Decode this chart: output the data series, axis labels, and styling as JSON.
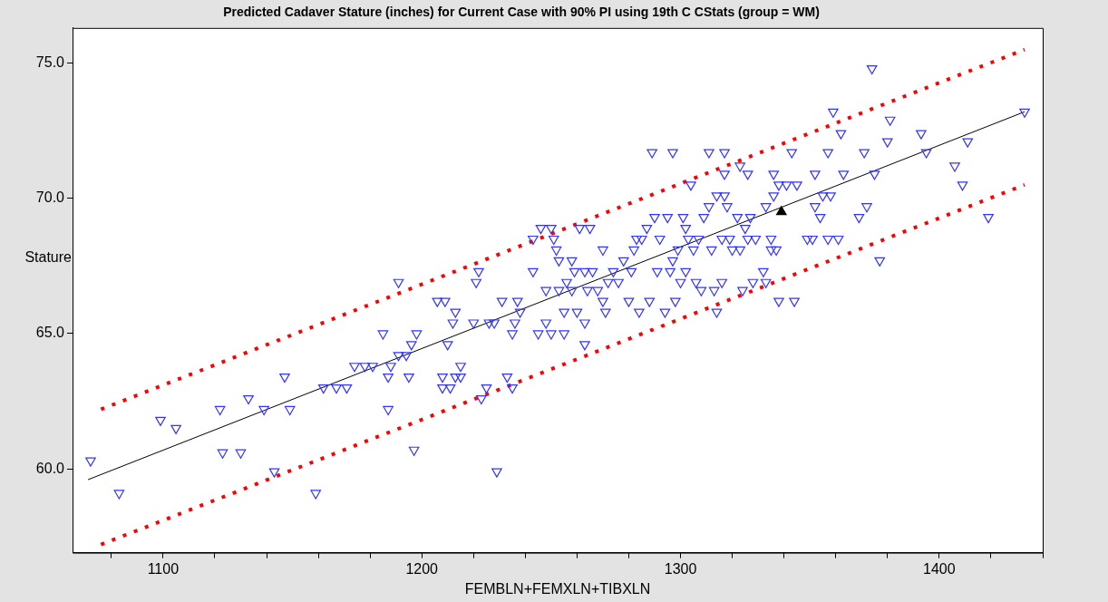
{
  "chart_data": {
    "type": "scatter",
    "title": "Predicted Cadaver Stature (inches) for Current Case with 90% PI using 19th C CStats (group = WM)",
    "xlabel": "FEMBLN+FEMXLN+TIBXLN",
    "ylabel": "Stature",
    "xlim": [
      1065,
      1440
    ],
    "ylim": [
      56.9,
      76.3
    ],
    "xticks": [
      {
        "value": 1080,
        "label": null
      },
      1100,
      {
        "value": 1120,
        "label": null
      },
      {
        "value": 1140,
        "label": null
      },
      {
        "value": 1160,
        "label": null
      },
      {
        "value": 1180,
        "label": null
      },
      1200,
      {
        "value": 1220,
        "label": null
      },
      {
        "value": 1240,
        "label": null
      },
      {
        "value": 1260,
        "label": null
      },
      {
        "value": 1280,
        "label": null
      },
      1300,
      {
        "value": 1320,
        "label": null
      },
      {
        "value": 1340,
        "label": null
      },
      {
        "value": 1360,
        "label": null
      },
      {
        "value": 1380,
        "label": null
      },
      1400,
      {
        "value": 1420,
        "label": null
      },
      {
        "value": 1440,
        "label": null
      }
    ],
    "yticks": [
      {
        "value": 60,
        "label": "60.0"
      },
      {
        "value": 65,
        "label": "65.0"
      },
      {
        "value": 70,
        "label": "70.0"
      },
      {
        "value": 75,
        "label": "75.0"
      }
    ],
    "grid": false,
    "legend": false,
    "series": [
      {
        "color": "#3333ff",
        "marker": "triangle",
        "x": [
          1072,
          1083,
          1099,
          1105,
          1122,
          1123,
          1130,
          1133,
          1139,
          1143,
          1147,
          1149,
          1159,
          1162,
          1167,
          1171,
          1174,
          1178,
          1181,
          1185,
          1187,
          1187,
          1188,
          1191,
          1191,
          1194,
          1195,
          1196,
          1197,
          1198,
          1206,
          1208,
          1208,
          1209,
          1210,
          1211,
          1212,
          1213,
          1213,
          1215,
          1215,
          1220,
          1221,
          1222,
          1223,
          1225,
          1226,
          1228,
          1229,
          1231,
          1233,
          1235,
          1235,
          1236,
          1237,
          1238,
          1243,
          1243,
          1245,
          1246,
          1248,
          1248,
          1250,
          1250,
          1251,
          1252,
          1253,
          1253,
          1255,
          1255,
          1256,
          1258,
          1258,
          1259,
          1260,
          1261,
          1263,
          1263,
          1263,
          1265,
          1264,
          1266,
          1268,
          1270,
          1270,
          1271,
          1272,
          1274,
          1276,
          1278,
          1280,
          1281,
          1282,
          1283,
          1284,
          1285,
          1287,
          1288,
          1289,
          1290,
          1291,
          1292,
          1294,
          1295,
          1296,
          1297,
          1297,
          1298,
          1299,
          1300,
          1301,
          1302,
          1302,
          1303,
          1304,
          1305,
          1306,
          1307,
          1308,
          1309,
          1311,
          1311,
          1312,
          1313,
          1314,
          1314,
          1316,
          1316,
          1317,
          1317,
          1317,
          1318,
          1319,
          1320,
          1322,
          1323,
          1323,
          1324,
          1325,
          1326,
          1326,
          1327,
          1328,
          1329,
          1332,
          1333,
          1333,
          1335,
          1335,
          1336,
          1336,
          1337,
          1338,
          1338,
          1341,
          1343,
          1344,
          1345,
          1349,
          1351,
          1352,
          1352,
          1354,
          1355,
          1357,
          1357,
          1358,
          1359,
          1361,
          1362,
          1363,
          1369,
          1371,
          1372,
          1374,
          1375,
          1377,
          1380,
          1381,
          1393,
          1395,
          1406,
          1409,
          1411,
          1419,
          1433
        ],
        "values": [
          60.3,
          59.1,
          61.8,
          61.5,
          62.2,
          60.6,
          60.6,
          62.6,
          62.2,
          59.9,
          63.4,
          62.2,
          59.1,
          63.0,
          63.0,
          63.0,
          63.8,
          63.8,
          63.8,
          65.0,
          63.4,
          62.2,
          63.8,
          66.9,
          64.2,
          64.2,
          63.4,
          64.6,
          60.7,
          65.0,
          66.2,
          63.4,
          63.0,
          66.2,
          64.6,
          63.0,
          65.4,
          65.8,
          63.4,
          63.8,
          63.4,
          65.4,
          66.9,
          67.3,
          62.6,
          63.0,
          65.4,
          65.4,
          59.9,
          66.2,
          63.4,
          63.0,
          65.0,
          65.4,
          66.2,
          65.8,
          67.3,
          68.5,
          65.0,
          68.9,
          66.6,
          65.4,
          68.9,
          65.0,
          68.5,
          68.1,
          66.6,
          67.7,
          65.0,
          65.8,
          66.9,
          67.7,
          66.6,
          67.3,
          65.8,
          68.9,
          67.3,
          65.4,
          64.6,
          68.9,
          66.6,
          67.3,
          66.6,
          68.1,
          66.2,
          65.8,
          66.9,
          67.3,
          66.9,
          67.7,
          66.2,
          67.3,
          68.1,
          68.5,
          65.8,
          68.5,
          68.9,
          66.2,
          71.7,
          69.3,
          67.3,
          68.5,
          65.8,
          69.3,
          67.3,
          67.7,
          71.7,
          66.2,
          68.1,
          66.9,
          69.3,
          67.3,
          68.9,
          68.5,
          70.5,
          68.1,
          66.9,
          68.5,
          66.6,
          69.3,
          71.7,
          69.7,
          68.1,
          66.6,
          65.8,
          70.1,
          68.5,
          66.9,
          71.7,
          70.1,
          70.9,
          69.7,
          68.5,
          68.1,
          69.3,
          71.2,
          68.1,
          66.6,
          68.9,
          68.5,
          70.9,
          69.3,
          66.9,
          68.5,
          67.3,
          66.9,
          69.7,
          68.5,
          68.1,
          70.9,
          70.1,
          68.1,
          70.5,
          66.2,
          70.5,
          71.7,
          66.2,
          70.5,
          68.5,
          68.5,
          69.7,
          70.9,
          69.3,
          70.1,
          71.7,
          68.5,
          70.1,
          73.2,
          68.5,
          72.4,
          70.9,
          69.3,
          71.7,
          69.7,
          74.8,
          70.9,
          67.7,
          72.1,
          72.9,
          72.4,
          71.7,
          71.2,
          70.5,
          72.1,
          69.3,
          73.2
        ]
      },
      {
        "type": "line",
        "color": "#000000",
        "line_style": "solid",
        "marker": "none",
        "x": [
          1071,
          1433
        ],
        "values": [
          59.6,
          73.2
        ]
      },
      {
        "type": "line",
        "color": "#ff0000",
        "line_style": "dotted",
        "marker": "none",
        "x": [
          1076,
          1433
        ],
        "values": [
          62.2,
          75.5
        ]
      },
      {
        "type": "line",
        "color": "#ff0000",
        "line_style": "dotted",
        "marker": "none",
        "x": [
          1076,
          1433
        ],
        "values": [
          57.2,
          70.5
        ]
      },
      {
        "color": "#000000",
        "marker": "triangle",
        "x": [
          1339
        ],
        "values": [
          69.5
        ]
      }
    ]
  }
}
